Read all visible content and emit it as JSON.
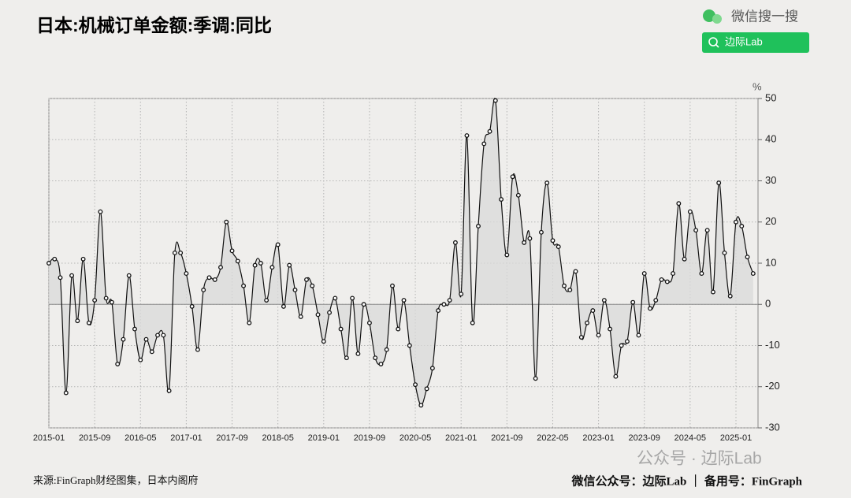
{
  "chart_data": {
    "type": "line",
    "title": "日本:机械订单金额:季调:同比",
    "y_unit": "%",
    "source": "来源:FinGraph财经图集，日本内阁府",
    "footer": "微信公众号：边际Lab ｜ 备用号：FinGraph",
    "watermark": "公众号 · 边际Lab",
    "search_brand": "微信搜一搜",
    "search_query": "边际Lab",
    "categories": [
      "2015-01",
      null,
      null,
      null,
      null,
      null,
      null,
      null,
      "2015-09",
      null,
      null,
      null,
      null,
      null,
      null,
      null,
      "2016-05",
      null,
      null,
      null,
      null,
      null,
      null,
      null,
      "2017-01",
      null,
      null,
      null,
      null,
      null,
      null,
      null,
      "2017-09",
      null,
      null,
      null,
      null,
      null,
      null,
      null,
      "2018-05",
      null,
      null,
      null,
      null,
      null,
      null,
      null,
      "2019-01",
      null,
      null,
      null,
      null,
      null,
      null,
      null,
      "2019-09",
      null,
      null,
      null,
      null,
      null,
      null,
      null,
      "2020-05",
      null,
      null,
      null,
      null,
      null,
      null,
      null,
      "2021-01",
      null,
      null,
      null,
      null,
      null,
      null,
      null,
      "2021-09",
      null,
      null,
      null,
      null,
      null,
      null,
      null,
      "2022-05",
      null,
      null,
      null,
      null,
      null,
      null,
      null,
      "2023-01",
      null,
      null,
      null,
      null,
      null,
      null,
      null,
      "2023-09",
      null,
      null,
      null,
      null,
      null,
      null,
      null,
      "2024-05",
      null,
      null,
      null,
      null,
      null,
      null,
      null,
      "2025-01",
      null,
      null,
      null
    ],
    "series": [
      {
        "color": "#111111",
        "values": [
          10,
          11,
          6.5,
          -21.5,
          7,
          -4,
          11,
          -4.5,
          1,
          22.5,
          1.5,
          0.5,
          -14.5,
          -8.5,
          7,
          -6,
          -13.5,
          -8.5,
          -11.5,
          -7.5,
          -7.5,
          -21,
          12.5,
          12.5,
          7.5,
          -0.5,
          -11,
          3.5,
          6.5,
          6,
          9,
          20,
          13,
          10.5,
          4.5,
          -4.5,
          9.5,
          10,
          1,
          9,
          14.5,
          -0.5,
          9.5,
          3.5,
          -3,
          6,
          4.5,
          -2.5,
          -9,
          -2,
          1.5,
          -6,
          -13,
          1.5,
          -12,
          0,
          -4.5,
          -13,
          -14.5,
          -11,
          4.5,
          -6,
          1,
          -10,
          -19.5,
          -24.5,
          -20.5,
          -15.5,
          -1.5,
          0,
          1,
          15,
          2.5,
          41,
          -4.5,
          19,
          39,
          42,
          49.5,
          25.5,
          12,
          31,
          26.5,
          15,
          16,
          -18,
          17.5,
          29.5,
          15.5,
          14,
          4.5,
          3.5,
          8,
          -8,
          -4.5,
          -1.5,
          -7.5,
          1,
          -6,
          -17.5,
          -10,
          -9,
          0.5,
          -7.5,
          7.5,
          -1,
          1,
          6,
          5.5,
          7.5,
          24.5,
          11,
          22.5,
          18,
          7.5,
          18,
          3,
          29.5,
          12.5,
          2,
          20,
          19,
          11.5,
          7.5
        ]
      }
    ],
    "ylim": [
      -30,
      50
    ],
    "yticks": [
      -30,
      -20,
      -10,
      0,
      10,
      20,
      30,
      40,
      50
    ],
    "grid": true,
    "fill_to_zero": "#d9d9d9"
  }
}
